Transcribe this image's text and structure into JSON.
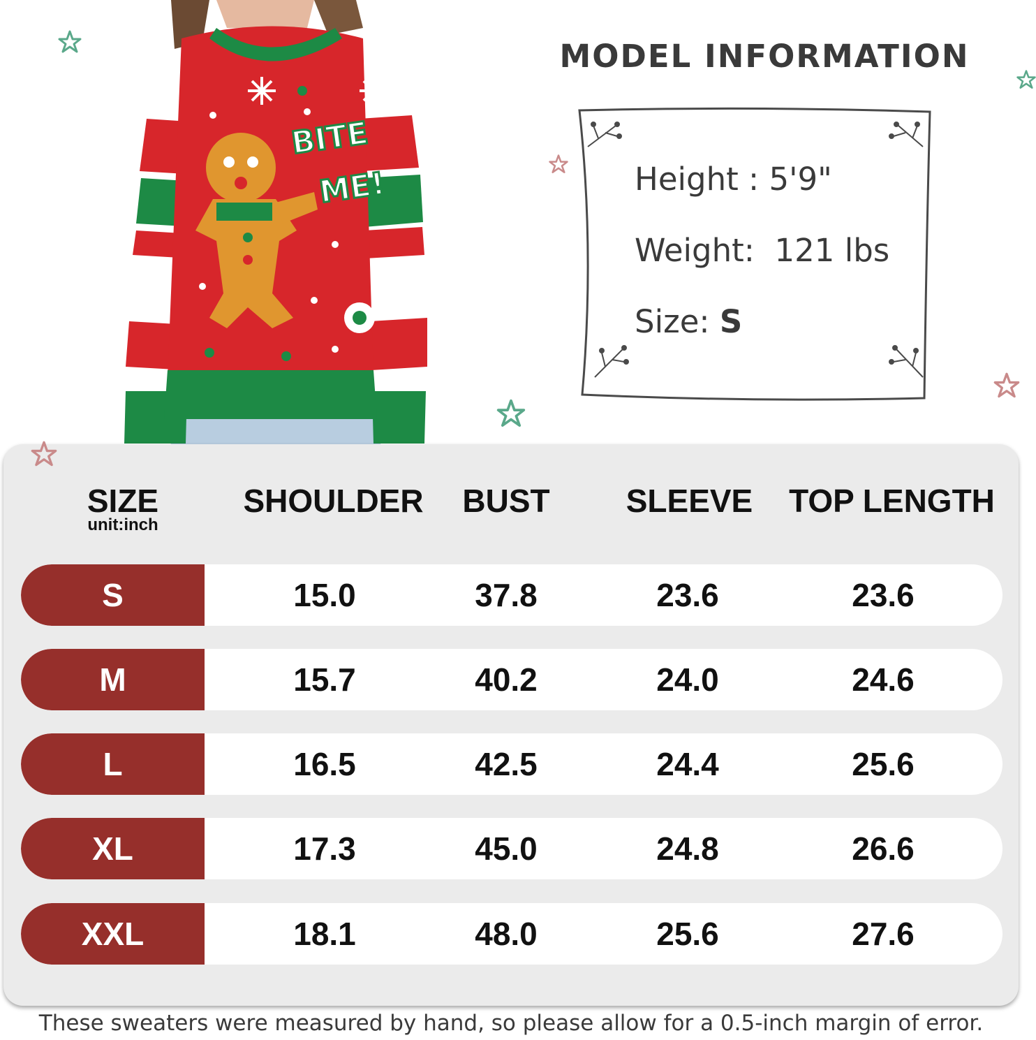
{
  "model_info": {
    "title": "MODEL INFORMATION",
    "height_label": "Height : ",
    "height_value": "5'9\"",
    "weight_label": "Weight:  ",
    "weight_value": "121 lbs",
    "size_label": "Size: ",
    "size_value": "S"
  },
  "sweater_graphic": {
    "text_line1": "BITE",
    "text_line2": "ME!"
  },
  "size_table": {
    "headers": {
      "size": "SIZE",
      "unit": "unit:inch",
      "shoulder": "SHOULDER",
      "bust": "BUST",
      "sleeve": "SLEEVE",
      "top_length": "TOP LENGTH"
    },
    "rows": [
      {
        "size": "S",
        "shoulder": "15.0",
        "bust": "37.8",
        "sleeve": "23.6",
        "top_length": "23.6"
      },
      {
        "size": "M",
        "shoulder": "15.7",
        "bust": "40.2",
        "sleeve": "24.0",
        "top_length": "24.6"
      },
      {
        "size": "L",
        "shoulder": "16.5",
        "bust": "42.5",
        "sleeve": "24.4",
        "top_length": "25.6"
      },
      {
        "size": "XL",
        "shoulder": "17.3",
        "bust": "45.0",
        "sleeve": "24.8",
        "top_length": "26.6"
      },
      {
        "size": "XXL",
        "shoulder": "18.1",
        "bust": "48.0",
        "sleeve": "25.6",
        "top_length": "27.6"
      }
    ]
  },
  "footnote": "These sweaters were measured by hand, so please allow for a 0.5-inch margin of error.",
  "colors": {
    "size_cell": "#962f2b",
    "row_bg": "#ffffff",
    "panel_bg": "#ebebeb",
    "sweater_red": "#d7262b",
    "sweater_green": "#1d8a45",
    "star_green": "#5aa88a",
    "star_pink": "#c98a8a"
  },
  "icons": [
    "star-icon",
    "twig-corner-icon",
    "snowflake-icon",
    "gingerbread-man-icon",
    "peppermint-candy-icon"
  ]
}
